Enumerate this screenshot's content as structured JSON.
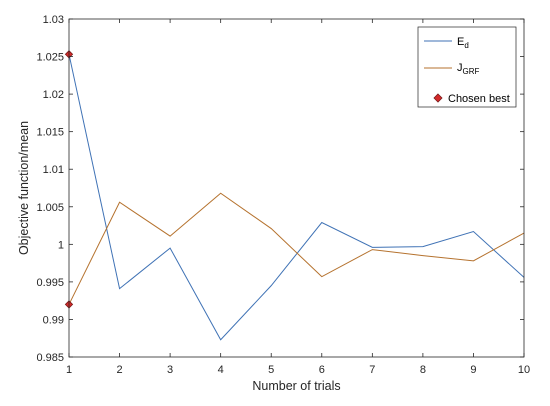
{
  "chart_data": {
    "type": "line",
    "x": [
      1,
      2,
      3,
      4,
      5,
      6,
      7,
      8,
      9,
      10
    ],
    "series": [
      {
        "name": "E",
        "name_subscript": "d",
        "color": "#3f72b5",
        "values": [
          1.0253,
          0.9941,
          0.9995,
          0.9873,
          0.9945,
          1.0029,
          0.9996,
          0.9997,
          1.0017,
          0.9956
        ]
      },
      {
        "name": "J",
        "name_subscript": "GRF",
        "color": "#b5722e",
        "values": [
          0.992,
          1.0056,
          1.0011,
          1.0068,
          1.0021,
          0.9957,
          0.9993,
          0.9985,
          0.9978,
          1.0015
        ]
      }
    ],
    "markers": {
      "name": "Chosen best",
      "color": "#d42a2a",
      "edge_color": "#7a1a1a",
      "points": [
        {
          "x": 1,
          "y": 1.0253
        },
        {
          "x": 1,
          "y": 0.992
        }
      ]
    },
    "xlabel": "Number of trials",
    "ylabel": "Objective function/mean",
    "xlim": [
      1,
      10
    ],
    "ylim": [
      0.985,
      1.03
    ],
    "xticks": [
      "1",
      "2",
      "3",
      "4",
      "5",
      "6",
      "7",
      "8",
      "9",
      "10"
    ],
    "yticks": [
      "0.985",
      "0.99",
      "0.995",
      "1",
      "1.005",
      "1.01",
      "1.015",
      "1.02",
      "1.025",
      "1.03"
    ],
    "grid": false,
    "legend_position": "top-right"
  }
}
